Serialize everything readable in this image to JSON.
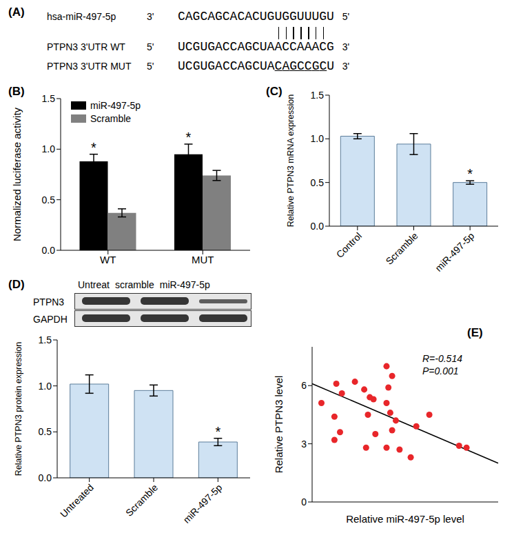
{
  "chart_data": [
    {
      "type": "alignment",
      "title": "(A)",
      "rows": [
        {
          "name": "hsa-miR-497-5p",
          "end_left": "3'",
          "sequence": "CAGCAGCACACUGUGGUUUGU",
          "end_right": "5'"
        },
        {
          "name": "PTPN3 3'UTR WT",
          "end_left": "5'",
          "sequence": "UCGUGACCAGCUAACCAAACG",
          "end_right": "3'"
        },
        {
          "name": "PTPN3 3'UTR MUT",
          "end_left": "5'",
          "sequence": "UCGUGACCAGCUACAGCCGCU",
          "end_right": "3'"
        }
      ],
      "seed_pairing": {
        "start": 14,
        "end": 20
      }
    },
    {
      "type": "bar",
      "title": "(B)",
      "categories": [
        "WT",
        "MUT"
      ],
      "series": [
        {
          "name": "miR-497-5p",
          "color": "#000000",
          "values": [
            0.88,
            0.95
          ],
          "error": [
            0.07,
            0.1
          ]
        },
        {
          "name": "Scramble",
          "color": "#808080",
          "values": [
            0.37,
            0.74
          ],
          "error": [
            0.04,
            0.05
          ]
        }
      ],
      "y_label": "Normalized luciferase activity",
      "ylim": [
        0,
        1.5
      ],
      "yticks": [
        {
          "value": 0,
          "label": "0.0"
        },
        {
          "value": 0.5,
          "label": "0.5"
        },
        {
          "value": 1,
          "label": "1.0"
        },
        {
          "value": 1.5,
          "label": "1.5"
        }
      ],
      "legend": "upper left",
      "annotations": [
        {
          "text": "*",
          "category": "WT",
          "series": "miR-497-5p"
        },
        {
          "text": "*",
          "category": "MUT",
          "series": "miR-497-5p"
        }
      ]
    },
    {
      "type": "bar",
      "title": "(C)",
      "categories": [
        "Control",
        "Scramble",
        "miR-497-5p"
      ],
      "values": [
        1.03,
        0.94,
        0.5
      ],
      "error": [
        0.03,
        0.12,
        0.02
      ],
      "color": "#cfe2f3",
      "y_label": "Relative PTPN3 mRNA expression",
      "ylim": [
        0,
        1.5
      ],
      "yticks": [
        {
          "value": 0,
          "label": "0.0"
        },
        {
          "value": 0.5,
          "label": "0.5"
        },
        {
          "value": 1,
          "label": "1.0"
        },
        {
          "value": 1.5,
          "label": "1.5"
        }
      ],
      "annotations": [
        {
          "text": "*",
          "category": "miR-497-5p"
        }
      ]
    },
    {
      "type": "bar",
      "title": "(D)",
      "blot": {
        "lanes": [
          "Untreat",
          "scramble",
          "miR-497-5p"
        ],
        "bands": [
          "PTPN3",
          "GAPDH"
        ]
      },
      "categories": [
        "Untreated",
        "Scramble",
        "miR-497-5p"
      ],
      "values": [
        1.02,
        0.95,
        0.39
      ],
      "error": [
        0.1,
        0.06,
        0.04
      ],
      "color": "#cfe2f3",
      "y_label": "Relative PTPN3 protein expression",
      "ylim": [
        0,
        1.5
      ],
      "yticks": [
        {
          "value": 0,
          "label": "0.0"
        },
        {
          "value": 0.5,
          "label": "0.5"
        },
        {
          "value": 1,
          "label": "1.0"
        },
        {
          "value": 1.5,
          "label": "1.5"
        }
      ],
      "annotations": [
        {
          "text": "*",
          "category": "miR-497-5p"
        }
      ]
    },
    {
      "type": "scatter",
      "title": "(E)",
      "x": [
        0.5,
        1.3,
        1.6,
        1.2,
        1.2,
        1.5,
        2.3,
        2.8,
        3.1,
        3.3,
        3.0,
        2.9,
        3.4,
        4.0,
        4.3,
        4.1,
        4.0,
        4.2,
        4.5,
        4.3,
        4.0,
        4.7,
        5.3,
        5.6,
        6.3,
        7.9,
        8.3
      ],
      "values": [
        5.1,
        6.1,
        5.6,
        4.4,
        3.2,
        3.6,
        6.2,
        5.8,
        5.4,
        5.3,
        4.5,
        2.8,
        3.5,
        7.0,
        6.5,
        5.9,
        5.1,
        4.6,
        4.2,
        3.7,
        2.8,
        2.7,
        2.3,
        3.9,
        4.5,
        2.9,
        2.8
      ],
      "color": "#e8262a",
      "fit": {
        "x": [
          0,
          10
        ],
        "y": [
          6.1,
          2.0
        ]
      },
      "x_label": "Relative miR-497-5p level",
      "y_label": "Relative PTPN3 level",
      "xlim": [
        0,
        10
      ],
      "ylim": [
        0,
        8
      ],
      "yticks": [
        0,
        3,
        6
      ],
      "tick_labels": "y",
      "annotations": [
        "R=-0.514",
        "P=0.001"
      ]
    }
  ]
}
